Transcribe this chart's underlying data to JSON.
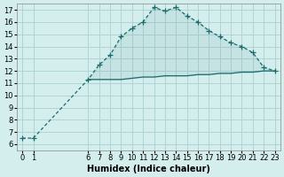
{
  "xlabel": "Humidex (Indice chaleur)",
  "bg_color": "#d4eeee",
  "grid_color": "#b0d4d4",
  "line_color": "#1a6b6b",
  "upper_x": [
    0,
    1,
    6,
    7,
    8,
    9,
    10,
    11,
    12,
    13,
    14,
    15,
    16,
    17,
    18,
    19,
    20,
    21,
    22,
    23
  ],
  "upper_y": [
    6.5,
    6.5,
    11.3,
    12.5,
    13.3,
    14.8,
    15.5,
    16.0,
    17.2,
    16.9,
    17.2,
    16.5,
    16.0,
    15.3,
    14.8,
    14.3,
    14.0,
    13.5,
    12.3,
    12.0
  ],
  "lower_x": [
    6,
    7,
    8,
    9,
    10,
    11,
    12,
    13,
    14,
    15,
    16,
    17,
    18,
    19,
    20,
    21,
    22,
    23
  ],
  "lower_y": [
    11.3,
    11.3,
    11.3,
    11.3,
    11.4,
    11.5,
    11.5,
    11.6,
    11.6,
    11.6,
    11.7,
    11.7,
    11.8,
    11.8,
    11.9,
    11.9,
    12.0,
    12.0
  ],
  "ylim": [
    5.5,
    17.5
  ],
  "xlim": [
    -0.5,
    23.5
  ],
  "yticks": [
    6,
    7,
    8,
    9,
    10,
    11,
    12,
    13,
    14,
    15,
    16,
    17
  ],
  "xticks": [
    0,
    1,
    6,
    7,
    8,
    9,
    10,
    11,
    12,
    13,
    14,
    15,
    16,
    17,
    18,
    19,
    20,
    21,
    22,
    23
  ]
}
